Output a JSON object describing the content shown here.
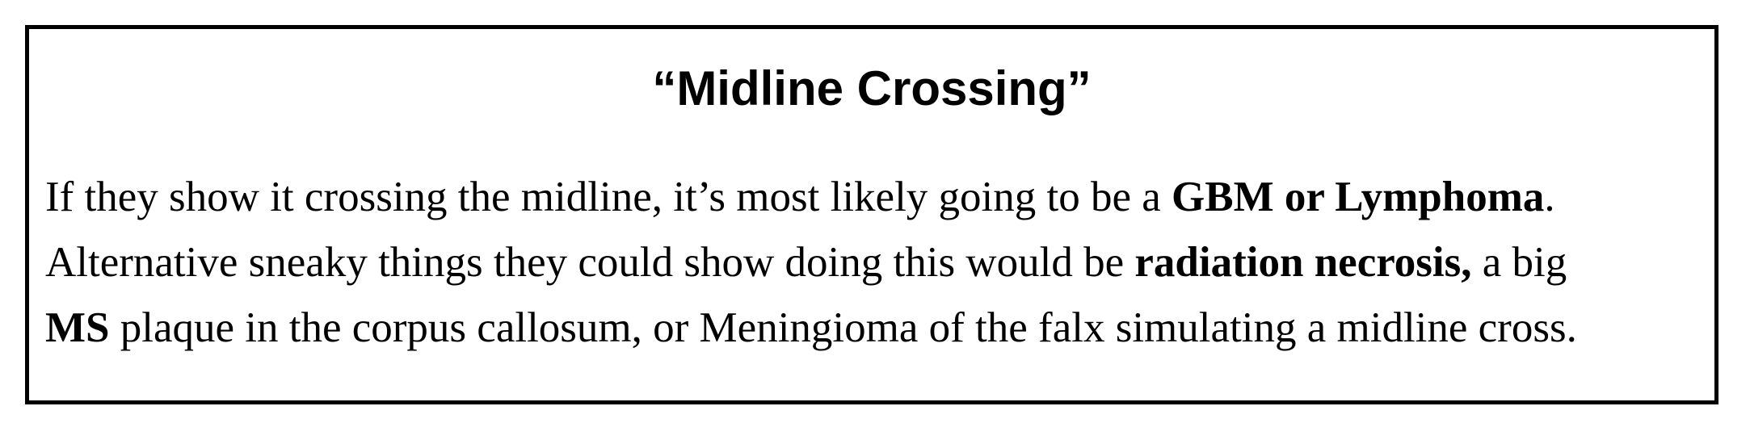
{
  "title": "“Midline Crossing”",
  "lines": [
    {
      "t1": "If they show it crossing the midline, it’s most likely going to be a ",
      "b1": "GBM or Lymphoma",
      "t2": "."
    },
    {
      "t1": "Alternative sneaky things they could show doing this would be ",
      "b1": "radiation necrosis,",
      "t2": " a big"
    },
    {
      "b1": "MS",
      "t1": " plaque in the corpus callosum, or Meningioma of the falx simulating a midline cross."
    }
  ]
}
